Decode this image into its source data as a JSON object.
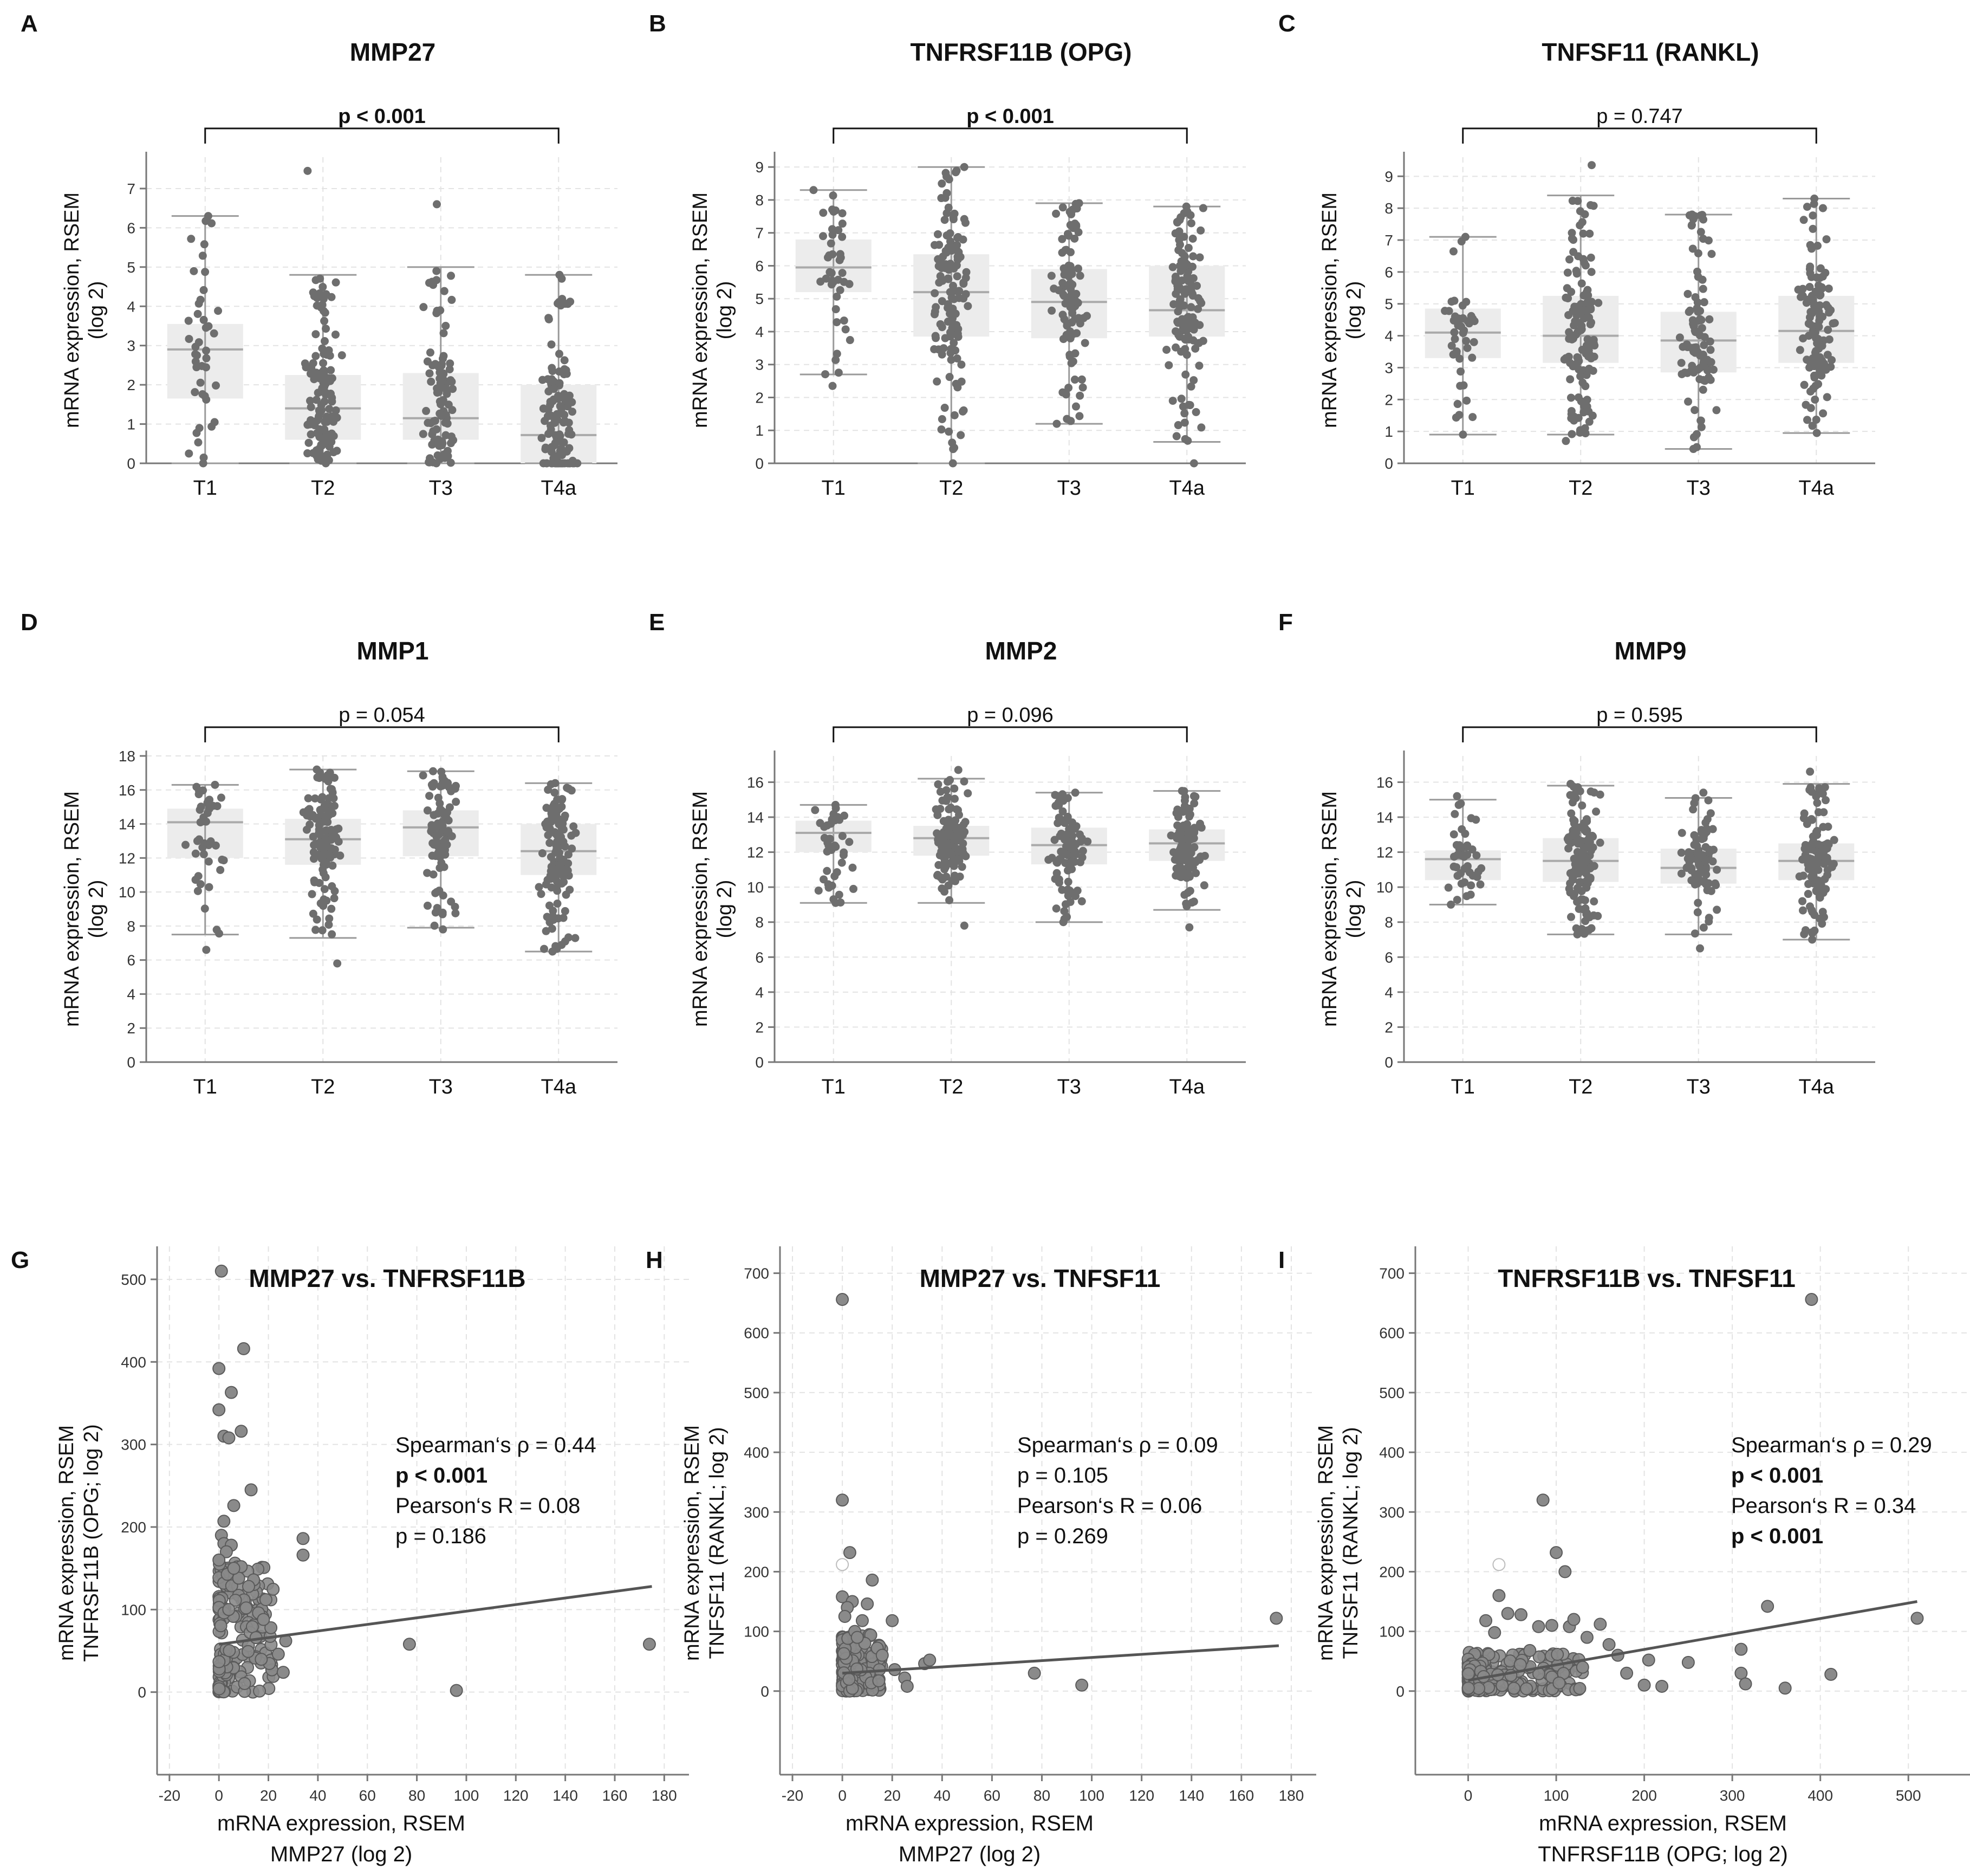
{
  "figure": {
    "y_axis_label": [
      "mRNA expression, RSEM",
      "(log 2)"
    ]
  },
  "chart_data": [
    {
      "id": "A",
      "type": "box",
      "panel_letter": "A",
      "title": "MMP27",
      "categories": [
        "T1",
        "T2",
        "T3",
        "T4a"
      ],
      "ylim": [
        0,
        7.8
      ],
      "yticks": [
        0,
        1,
        2,
        3,
        4,
        5,
        6,
        7
      ],
      "ylabel": [
        "mRNA expression, RSEM",
        "(log 2)"
      ],
      "significance": {
        "text": "p < 0.001",
        "bold": true,
        "from": "T1",
        "to": "T4a"
      },
      "boxes": [
        {
          "category": "T1",
          "q1": 1.65,
          "median": 2.9,
          "q3": 3.55,
          "whisker_low": 0.0,
          "whisker_high": 6.3,
          "n": 40,
          "min": 0.0,
          "max": 6.3
        },
        {
          "category": "T2",
          "q1": 0.6,
          "median": 1.4,
          "q3": 2.25,
          "whisker_low": 0.0,
          "whisker_high": 4.8,
          "n": 130,
          "min": 0.0,
          "max": 7.45
        },
        {
          "category": "T3",
          "q1": 0.6,
          "median": 1.15,
          "q3": 2.3,
          "whisker_low": 0.0,
          "whisker_high": 5.0,
          "n": 90,
          "min": 0.0,
          "max": 6.6
        },
        {
          "category": "T4a",
          "q1": 0.0,
          "median": 0.72,
          "q3": 2.0,
          "whisker_low": 0.0,
          "whisker_high": 4.8,
          "n": 120,
          "min": 0.0,
          "max": 4.8
        }
      ]
    },
    {
      "id": "B",
      "type": "box",
      "panel_letter": "B",
      "title": "TNFRSF11B (OPG)",
      "categories": [
        "T1",
        "T2",
        "T3",
        "T4a"
      ],
      "ylim": [
        0,
        9.3
      ],
      "yticks": [
        0,
        1,
        2,
        3,
        4,
        5,
        6,
        7,
        8,
        9
      ],
      "ylabel": [
        "mRNA expression, RSEM",
        "(log 2)"
      ],
      "significance": {
        "text": "p < 0.001",
        "bold": true,
        "from": "T1",
        "to": "T4a"
      },
      "boxes": [
        {
          "category": "T1",
          "q1": 5.2,
          "median": 5.95,
          "q3": 6.8,
          "whisker_low": 2.7,
          "whisker_high": 8.3,
          "n": 40,
          "min": 2.35,
          "max": 8.3
        },
        {
          "category": "T2",
          "q1": 3.85,
          "median": 5.2,
          "q3": 6.35,
          "whisker_low": 0.0,
          "whisker_high": 9.0,
          "n": 130,
          "min": 0.0,
          "max": 9.0
        },
        {
          "category": "T3",
          "q1": 3.8,
          "median": 4.9,
          "q3": 5.9,
          "whisker_low": 1.2,
          "whisker_high": 7.9,
          "n": 90,
          "min": 1.2,
          "max": 7.9
        },
        {
          "category": "T4a",
          "q1": 3.85,
          "median": 4.65,
          "q3": 6.0,
          "whisker_low": 0.65,
          "whisker_high": 7.8,
          "n": 120,
          "min": 0.0,
          "max": 7.8
        }
      ]
    },
    {
      "id": "C",
      "type": "box",
      "panel_letter": "C",
      "title": "TNFSF11 (RANKL)",
      "categories": [
        "T1",
        "T2",
        "T3",
        "T4a"
      ],
      "ylim": [
        0,
        9.6
      ],
      "yticks": [
        0,
        1,
        2,
        3,
        4,
        5,
        6,
        7,
        8,
        9
      ],
      "ylabel": [
        "mRNA expression, RSEM",
        "(log 2)"
      ],
      "significance": {
        "text": "p = 0.747",
        "bold": false,
        "from": "T1",
        "to": "T4a"
      },
      "boxes": [
        {
          "category": "T1",
          "q1": 3.3,
          "median": 4.1,
          "q3": 4.85,
          "whisker_low": 0.9,
          "whisker_high": 7.1,
          "n": 40,
          "min": 0.9,
          "max": 7.1
        },
        {
          "category": "T2",
          "q1": 3.15,
          "median": 4.0,
          "q3": 5.25,
          "whisker_low": 0.9,
          "whisker_high": 8.4,
          "n": 130,
          "min": 0.7,
          "max": 9.35
        },
        {
          "category": "T3",
          "q1": 2.85,
          "median": 3.85,
          "q3": 4.75,
          "whisker_low": 0.45,
          "whisker_high": 7.8,
          "n": 90,
          "min": 0.45,
          "max": 7.8
        },
        {
          "category": "T4a",
          "q1": 3.15,
          "median": 4.15,
          "q3": 5.25,
          "whisker_low": 0.95,
          "whisker_high": 8.3,
          "n": 120,
          "min": 0.95,
          "max": 8.3
        }
      ]
    },
    {
      "id": "D",
      "type": "box",
      "panel_letter": "D",
      "title": "MMP1",
      "categories": [
        "T1",
        "T2",
        "T3",
        "T4a"
      ],
      "ylim": [
        0,
        18
      ],
      "yticks": [
        0,
        2,
        4,
        6,
        8,
        10,
        12,
        14,
        16,
        18
      ],
      "ylabel": [
        "mRNA expression, RSEM",
        "(log 2)"
      ],
      "significance": {
        "text": "p = 0.054",
        "bold": false,
        "from": "T1",
        "to": "T4a"
      },
      "boxes": [
        {
          "category": "T1",
          "q1": 12.0,
          "median": 14.1,
          "q3": 14.9,
          "whisker_low": 7.5,
          "whisker_high": 16.3,
          "n": 40,
          "min": 6.6,
          "max": 16.3
        },
        {
          "category": "T2",
          "q1": 11.6,
          "median": 13.1,
          "q3": 14.3,
          "whisker_low": 7.3,
          "whisker_high": 17.2,
          "n": 130,
          "min": 5.8,
          "max": 17.2
        },
        {
          "category": "T3",
          "q1": 12.1,
          "median": 13.8,
          "q3": 14.8,
          "whisker_low": 7.9,
          "whisker_high": 17.1,
          "n": 90,
          "min": 7.8,
          "max": 17.1
        },
        {
          "category": "T4a",
          "q1": 11.0,
          "median": 12.4,
          "q3": 14.0,
          "whisker_low": 6.5,
          "whisker_high": 16.4,
          "n": 120,
          "min": 6.5,
          "max": 16.4
        }
      ]
    },
    {
      "id": "E",
      "type": "box",
      "panel_letter": "E",
      "title": "MMP2",
      "categories": [
        "T1",
        "T2",
        "T3",
        "T4a"
      ],
      "ylim": [
        0,
        17.5
      ],
      "yticks": [
        0,
        2,
        4,
        6,
        8,
        10,
        12,
        14,
        16
      ],
      "ylabel": [
        "mRNA expression, RSEM",
        "(log 2)"
      ],
      "significance": {
        "text": "p = 0.096",
        "bold": false,
        "from": "T1",
        "to": "T4a"
      },
      "boxes": [
        {
          "category": "T1",
          "q1": 12.0,
          "median": 13.1,
          "q3": 13.8,
          "whisker_low": 9.1,
          "whisker_high": 14.7,
          "n": 40,
          "min": 9.1,
          "max": 14.7
        },
        {
          "category": "T2",
          "q1": 11.8,
          "median": 12.8,
          "q3": 13.5,
          "whisker_low": 9.1,
          "whisker_high": 16.2,
          "n": 130,
          "min": 7.8,
          "max": 16.7
        },
        {
          "category": "T3",
          "q1": 11.3,
          "median": 12.4,
          "q3": 13.4,
          "whisker_low": 8.0,
          "whisker_high": 15.4,
          "n": 90,
          "min": 8.0,
          "max": 15.4
        },
        {
          "category": "T4a",
          "q1": 11.5,
          "median": 12.5,
          "q3": 13.3,
          "whisker_low": 8.7,
          "whisker_high": 15.5,
          "n": 120,
          "min": 7.7,
          "max": 15.5
        }
      ]
    },
    {
      "id": "F",
      "type": "box",
      "panel_letter": "F",
      "title": "MMP9",
      "categories": [
        "T1",
        "T2",
        "T3",
        "T4a"
      ],
      "ylim": [
        0,
        17.5
      ],
      "yticks": [
        0,
        2,
        4,
        6,
        8,
        10,
        12,
        14,
        16
      ],
      "ylabel": [
        "mRNA expression, RSEM",
        "(log 2)"
      ],
      "significance": {
        "text": "p = 0.595",
        "bold": false,
        "from": "T1",
        "to": "T4a"
      },
      "boxes": [
        {
          "category": "T1",
          "q1": 10.4,
          "median": 11.6,
          "q3": 12.1,
          "whisker_low": 9.0,
          "whisker_high": 15.0,
          "n": 40,
          "min": 9.0,
          "max": 15.2
        },
        {
          "category": "T2",
          "q1": 10.3,
          "median": 11.5,
          "q3": 12.8,
          "whisker_low": 7.3,
          "whisker_high": 15.8,
          "n": 130,
          "min": 7.3,
          "max": 15.9
        },
        {
          "category": "T3",
          "q1": 10.2,
          "median": 11.1,
          "q3": 12.2,
          "whisker_low": 7.3,
          "whisker_high": 15.1,
          "n": 90,
          "min": 6.5,
          "max": 15.4
        },
        {
          "category": "T4a",
          "q1": 10.4,
          "median": 11.5,
          "q3": 12.5,
          "whisker_low": 7.0,
          "whisker_high": 15.9,
          "n": 120,
          "min": 7.0,
          "max": 16.6
        }
      ]
    },
    {
      "id": "G",
      "type": "scatter",
      "panel_letter": "G",
      "title": "MMP27 vs. TNFRSF11B",
      "xlim": [
        -25,
        190
      ],
      "ylim": [
        -100,
        540
      ],
      "xticks": [
        -20,
        0,
        20,
        40,
        60,
        80,
        100,
        120,
        140,
        160,
        180
      ],
      "yticks": [
        0,
        100,
        200,
        300,
        400,
        500
      ],
      "xlabel": [
        "mRNA expression, RSEM",
        "MMP27 (log 2)"
      ],
      "ylabel": [
        "mRNA expression, RSEM",
        "TNFRSF11B (OPG; log 2)"
      ],
      "stats": [
        {
          "text": "Spearman‘s ρ = 0.44",
          "bold": false
        },
        {
          "text": "p < 0.001",
          "bold": true
        },
        {
          "text": "Pearson‘s R = 0.08",
          "bold": false
        },
        {
          "text": "p = 0.186",
          "bold": false
        }
      ],
      "regression": {
        "x1": 0,
        "y1": 58,
        "x2": 175,
        "y2": 128
      },
      "cluster": {
        "x_min": 0,
        "x_max": 22,
        "y_min": 0,
        "y_max": 160,
        "n": 170
      },
      "points": [
        [
          1,
          510
        ],
        [
          10,
          416
        ],
        [
          0,
          392
        ],
        [
          5,
          363
        ],
        [
          0,
          342
        ],
        [
          2,
          310
        ],
        [
          4,
          308
        ],
        [
          9,
          316
        ],
        [
          13,
          245
        ],
        [
          6,
          226
        ],
        [
          2,
          207
        ],
        [
          34,
          186
        ],
        [
          34,
          166
        ],
        [
          1,
          190
        ],
        [
          9,
          152
        ],
        [
          14,
          136
        ],
        [
          19,
          112
        ],
        [
          11,
          102
        ],
        [
          21,
          78
        ],
        [
          15,
          66
        ],
        [
          27,
          62
        ],
        [
          26,
          24
        ],
        [
          77,
          58
        ],
        [
          96,
          2
        ],
        [
          174,
          58
        ],
        [
          2,
          180
        ],
        [
          5,
          178
        ],
        [
          8,
          138
        ],
        [
          12,
          128
        ],
        [
          16,
          96
        ],
        [
          18,
          88
        ],
        [
          24,
          46
        ],
        [
          3,
          170
        ],
        [
          6,
          150
        ],
        [
          0,
          160
        ]
      ]
    },
    {
      "id": "H",
      "type": "scatter",
      "panel_letter": "H",
      "title": "MMP27 vs. TNFSF11",
      "xlim": [
        -25,
        190
      ],
      "ylim": [
        -140,
        745
      ],
      "xticks": [
        -20,
        0,
        20,
        40,
        60,
        80,
        100,
        120,
        140,
        160,
        180
      ],
      "yticks": [
        0,
        100,
        200,
        300,
        400,
        500,
        600,
        700
      ],
      "xlabel": [
        "mRNA expression, RSEM",
        "MMP27 (log 2)"
      ],
      "ylabel": [
        "mRNA expression, RSEM",
        "TNFSF11 (RANKL; log 2)"
      ],
      "stats": [
        {
          "text": "Spearman‘s ρ = 0.09",
          "bold": false
        },
        {
          "text": "p = 0.105",
          "bold": false
        },
        {
          "text": "Pearson‘s R = 0.06",
          "bold": false
        },
        {
          "text": "p = 0.269",
          "bold": false
        }
      ],
      "regression": {
        "x1": 0,
        "y1": 30,
        "x2": 175,
        "y2": 76
      },
      "cluster": {
        "x_min": 0,
        "x_max": 16,
        "y_min": 0,
        "y_max": 95,
        "n": 170
      },
      "hollow_points": [
        [
          0,
          212
        ]
      ],
      "points": [
        [
          0,
          656
        ],
        [
          0,
          320
        ],
        [
          3,
          232
        ],
        [
          0,
          158
        ],
        [
          4,
          150
        ],
        [
          10,
          146
        ],
        [
          12,
          186
        ],
        [
          20,
          118
        ],
        [
          2,
          140
        ],
        [
          8,
          118
        ],
        [
          14,
          72
        ],
        [
          25,
          22
        ],
        [
          26,
          8
        ],
        [
          33,
          46
        ],
        [
          35,
          52
        ],
        [
          21,
          36
        ],
        [
          77,
          30
        ],
        [
          96,
          10
        ],
        [
          174,
          122
        ],
        [
          5,
          100
        ],
        [
          9,
          80
        ],
        [
          16,
          60
        ],
        [
          1,
          125
        ],
        [
          6,
          90
        ]
      ]
    },
    {
      "id": "I",
      "type": "scatter",
      "panel_letter": "I",
      "title": "TNFRSF11B vs. TNFSF11",
      "xlim": [
        -60,
        570
      ],
      "ylim": [
        -140,
        745
      ],
      "xticks": [
        0,
        100,
        200,
        300,
        400,
        500
      ],
      "yticks": [
        0,
        100,
        200,
        300,
        400,
        500,
        600,
        700
      ],
      "xlabel": [
        "mRNA expression, RSEM",
        "TNFRSF11B (OPG; log 2)"
      ],
      "ylabel": [
        "mRNA expression, RSEM",
        "TNFSF11 (RANKL; log 2)"
      ],
      "stats": [
        {
          "text": "Spearman‘s ρ = 0.29",
          "bold": false
        },
        {
          "text": "p < 0.001",
          "bold": true
        },
        {
          "text": "Pearson‘s R = 0.34",
          "bold": false
        },
        {
          "text": "p < 0.001",
          "bold": true
        }
      ],
      "regression": {
        "x1": 0,
        "y1": 18,
        "x2": 510,
        "y2": 150
      },
      "cluster": {
        "x_min": 0,
        "x_max": 130,
        "y_min": 0,
        "y_max": 65,
        "n": 220
      },
      "hollow_points": [
        [
          35,
          212
        ]
      ],
      "points": [
        [
          390,
          656
        ],
        [
          85,
          320
        ],
        [
          100,
          232
        ],
        [
          110,
          200
        ],
        [
          35,
          160
        ],
        [
          45,
          130
        ],
        [
          60,
          128
        ],
        [
          80,
          108
        ],
        [
          95,
          110
        ],
        [
          115,
          108
        ],
        [
          120,
          120
        ],
        [
          150,
          112
        ],
        [
          135,
          90
        ],
        [
          160,
          78
        ],
        [
          205,
          52
        ],
        [
          250,
          48
        ],
        [
          310,
          70
        ],
        [
          340,
          142
        ],
        [
          360,
          5
        ],
        [
          412,
          28
        ],
        [
          510,
          122
        ],
        [
          310,
          30
        ],
        [
          315,
          12
        ],
        [
          220,
          8
        ],
        [
          200,
          10
        ],
        [
          180,
          30
        ],
        [
          130,
          40
        ],
        [
          170,
          60
        ],
        [
          20,
          118
        ],
        [
          70,
          68
        ],
        [
          30,
          98
        ]
      ]
    }
  ]
}
